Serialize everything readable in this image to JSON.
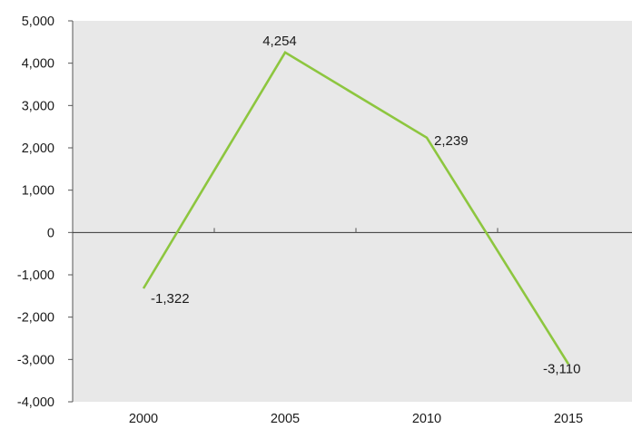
{
  "chart_data": {
    "type": "line",
    "title": "",
    "xlabel": "",
    "ylabel": "",
    "categories": [
      "2000",
      "2005",
      "2010",
      "2015"
    ],
    "series": [
      {
        "values": [
          -1322,
          4254,
          2239,
          -3110
        ],
        "color": "#8dc63f"
      }
    ],
    "data_labels": [
      "-1,322",
      "4,254",
      "2,239",
      "-3,110"
    ],
    "ylim": [
      -4000,
      5000
    ],
    "yticks": [
      5000,
      4000,
      3000,
      2000,
      1000,
      0,
      -1000,
      -2000,
      -3000,
      -4000
    ],
    "ytick_labels": [
      "5,000",
      "4,000",
      "3,000",
      "2,000",
      "1,000",
      "0",
      "-1,000",
      "-2,000",
      "-3,000",
      "-4,000"
    ],
    "grid": false,
    "legend": "none",
    "plot_background": "#e8e8e8"
  }
}
